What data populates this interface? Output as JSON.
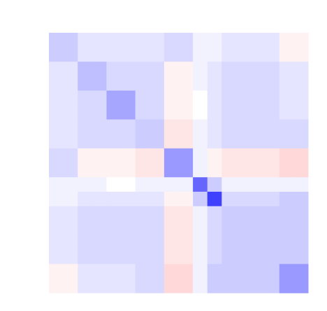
{
  "chart_data": {
    "type": "heatmap",
    "values": [
      [
        0.2,
        0.2,
        0.1,
        0.1,
        0.1,
        0.1,
        0.1,
        0.1,
        0.15,
        0.15,
        0.05,
        0.05,
        0.1,
        0.1,
        0.1,
        0.1,
        -0.05,
        -0.05
      ],
      [
        0.2,
        0.2,
        0.1,
        0.1,
        0.1,
        0.1,
        0.1,
        0.1,
        0.15,
        0.15,
        0.05,
        0.05,
        0.1,
        0.1,
        0.1,
        0.1,
        -0.05,
        -0.05
      ],
      [
        0.1,
        0.1,
        0.25,
        0.25,
        0.15,
        0.15,
        0.15,
        0.15,
        -0.05,
        -0.05,
        0.05,
        0.1,
        0.15,
        0.15,
        0.15,
        0.15,
        0.1,
        0.1
      ],
      [
        0.1,
        0.1,
        0.25,
        0.25,
        0.15,
        0.15,
        0.15,
        0.15,
        -0.05,
        -0.05,
        0.05,
        0.1,
        0.15,
        0.15,
        0.15,
        0.15,
        0.1,
        0.1
      ],
      [
        0.1,
        0.1,
        0.15,
        0.15,
        0.35,
        0.35,
        0.15,
        0.15,
        -0.05,
        -0.05,
        0,
        0.1,
        0.15,
        0.15,
        0.15,
        0.15,
        0.1,
        0.1
      ],
      [
        0.1,
        0.1,
        0.15,
        0.15,
        0.35,
        0.35,
        0.15,
        0.15,
        -0.05,
        -0.05,
        0,
        0.1,
        0.15,
        0.15,
        0.15,
        0.15,
        0.1,
        0.1
      ],
      [
        0.1,
        0.1,
        0.15,
        0.15,
        0.15,
        0.15,
        0.2,
        0.2,
        -0.1,
        -0.1,
        0.05,
        0.1,
        0.15,
        0.15,
        0.15,
        0.15,
        0.15,
        0.15
      ],
      [
        0.1,
        0.1,
        0.15,
        0.15,
        0.15,
        0.15,
        0.2,
        0.2,
        -0.1,
        -0.1,
        0.05,
        0.1,
        0.15,
        0.15,
        0.15,
        0.15,
        0.15,
        0.15
      ],
      [
        0.15,
        0.15,
        -0.05,
        -0.05,
        -0.05,
        -0.05,
        -0.1,
        -0.1,
        0.4,
        0.4,
        0.05,
        -0.05,
        -0.1,
        -0.1,
        -0.1,
        -0.1,
        -0.15,
        -0.15
      ],
      [
        0.15,
        0.15,
        -0.05,
        -0.05,
        -0.05,
        -0.05,
        -0.1,
        -0.1,
        0.4,
        0.4,
        0.05,
        -0.05,
        -0.1,
        -0.1,
        -0.1,
        -0.1,
        -0.15,
        -0.15
      ],
      [
        0.05,
        0.05,
        0.05,
        0.05,
        0,
        0,
        0.05,
        0.05,
        0.05,
        0.05,
        0.6,
        0.2,
        0.05,
        0.05,
        0.05,
        0.05,
        0.05,
        0.05
      ],
      [
        0.05,
        0.05,
        0.1,
        0.1,
        0.1,
        0.1,
        0.1,
        0.1,
        -0.05,
        -0.05,
        0.2,
        0.75,
        0.15,
        0.15,
        0.15,
        0.15,
        0.2,
        0.2
      ],
      [
        0.1,
        0.1,
        0.15,
        0.15,
        0.15,
        0.15,
        0.15,
        0.15,
        -0.1,
        -0.1,
        0.05,
        0.15,
        0.2,
        0.2,
        0.2,
        0.2,
        0.2,
        0.2
      ],
      [
        0.1,
        0.1,
        0.15,
        0.15,
        0.15,
        0.15,
        0.15,
        0.15,
        -0.1,
        -0.1,
        0.05,
        0.15,
        0.2,
        0.2,
        0.2,
        0.2,
        0.2,
        0.2
      ],
      [
        0.1,
        0.1,
        0.15,
        0.15,
        0.15,
        0.15,
        0.15,
        0.15,
        -0.1,
        -0.1,
        0.05,
        0.15,
        0.2,
        0.2,
        0.2,
        0.2,
        0.2,
        0.2
      ],
      [
        0.1,
        0.1,
        0.15,
        0.15,
        0.15,
        0.15,
        0.15,
        0.15,
        -0.1,
        -0.1,
        0.05,
        0.15,
        0.2,
        0.2,
        0.2,
        0.2,
        0.2,
        0.2
      ],
      [
        -0.05,
        -0.05,
        0.1,
        0.1,
        0.1,
        0.1,
        0.15,
        0.15,
        -0.15,
        -0.15,
        0.05,
        0.2,
        0.2,
        0.2,
        0.2,
        0.2,
        0.4,
        0.4
      ],
      [
        -0.05,
        -0.05,
        0.1,
        0.1,
        0.1,
        0.1,
        0.15,
        0.15,
        -0.15,
        -0.15,
        0.05,
        0.2,
        0.2,
        0.2,
        0.2,
        0.2,
        0.4,
        0.4
      ]
    ],
    "vlim": [
      -1,
      1
    ],
    "colors": {
      "low": "#ff0000",
      "mid": "#ffffff",
      "high": "#0000ff"
    }
  }
}
